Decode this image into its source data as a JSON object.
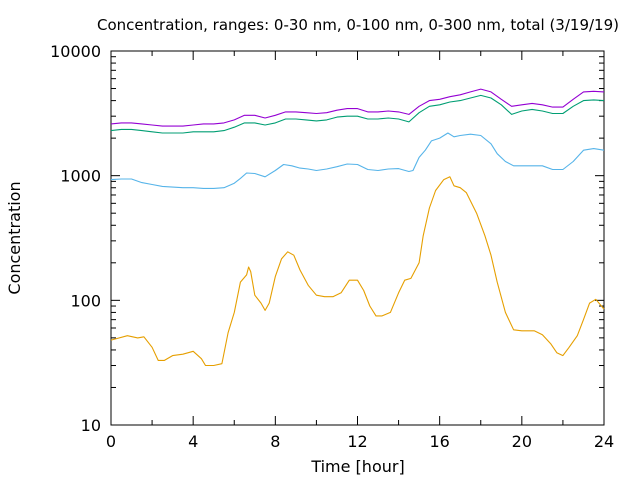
{
  "chart_data": {
    "type": "line",
    "title": "Concentration, ranges: 0-30 nm, 0-100 nm, 0-300 nm, total (3/19/19)",
    "xlabel": "Time [hour]",
    "ylabel": "Concentration",
    "xlim": [
      0,
      24
    ],
    "ylim": [
      10,
      10000
    ],
    "yscale": "log",
    "grid": false,
    "legend": "none",
    "x_ticks": [
      "0",
      "4",
      "8",
      "12",
      "16",
      "20",
      "24"
    ],
    "x_tick_values": [
      0,
      4,
      8,
      12,
      16,
      20,
      24
    ],
    "y_ticks": [
      "10",
      "100",
      "1000",
      "10000"
    ],
    "y_tick_values": [
      10,
      100,
      1000,
      10000
    ],
    "series": [
      {
        "color": "#e69f00",
        "points": [
          [
            0,
            48
          ],
          [
            0.8,
            52
          ],
          [
            1.3,
            50
          ],
          [
            1.6,
            51
          ],
          [
            2.0,
            42
          ],
          [
            2.3,
            33
          ],
          [
            2.6,
            33
          ],
          [
            3.0,
            36
          ],
          [
            3.5,
            37
          ],
          [
            4.0,
            39
          ],
          [
            4.4,
            34
          ],
          [
            4.6,
            30
          ],
          [
            5.0,
            30
          ],
          [
            5.4,
            31
          ],
          [
            5.7,
            55
          ],
          [
            6.0,
            80
          ],
          [
            6.3,
            140
          ],
          [
            6.6,
            160
          ],
          [
            6.7,
            185
          ],
          [
            6.8,
            170
          ],
          [
            7.0,
            110
          ],
          [
            7.3,
            95
          ],
          [
            7.5,
            83
          ],
          [
            7.7,
            95
          ],
          [
            8.0,
            155
          ],
          [
            8.3,
            215
          ],
          [
            8.6,
            245
          ],
          [
            8.9,
            230
          ],
          [
            9.2,
            175
          ],
          [
            9.6,
            132
          ],
          [
            10.0,
            110
          ],
          [
            10.4,
            107
          ],
          [
            10.8,
            107
          ],
          [
            11.2,
            115
          ],
          [
            11.6,
            145
          ],
          [
            12.0,
            145
          ],
          [
            12.3,
            120
          ],
          [
            12.6,
            90
          ],
          [
            12.9,
            75
          ],
          [
            13.2,
            75
          ],
          [
            13.6,
            80
          ],
          [
            14.0,
            115
          ],
          [
            14.3,
            145
          ],
          [
            14.6,
            150
          ],
          [
            15.0,
            200
          ],
          [
            15.2,
            330
          ],
          [
            15.5,
            550
          ],
          [
            15.8,
            760
          ],
          [
            16.2,
            930
          ],
          [
            16.5,
            980
          ],
          [
            16.7,
            830
          ],
          [
            17.0,
            800
          ],
          [
            17.3,
            730
          ],
          [
            17.8,
            500
          ],
          [
            18.2,
            330
          ],
          [
            18.5,
            230
          ],
          [
            18.8,
            140
          ],
          [
            19.2,
            80
          ],
          [
            19.6,
            58
          ],
          [
            20.0,
            57
          ],
          [
            20.6,
            57
          ],
          [
            21.0,
            53
          ],
          [
            21.4,
            45
          ],
          [
            21.7,
            38
          ],
          [
            22.0,
            36
          ],
          [
            22.3,
            42
          ],
          [
            22.7,
            52
          ],
          [
            23.0,
            70
          ],
          [
            23.3,
            95
          ],
          [
            23.6,
            102
          ],
          [
            24.0,
            85
          ]
        ]
      },
      {
        "color": "#56b4e9",
        "points": [
          [
            0,
            930
          ],
          [
            0.5,
            940
          ],
          [
            1.0,
            940
          ],
          [
            1.5,
            880
          ],
          [
            2.0,
            850
          ],
          [
            2.5,
            820
          ],
          [
            3.0,
            810
          ],
          [
            3.5,
            800
          ],
          [
            4.0,
            800
          ],
          [
            4.5,
            790
          ],
          [
            5.0,
            790
          ],
          [
            5.5,
            800
          ],
          [
            6.0,
            870
          ],
          [
            6.3,
            950
          ],
          [
            6.6,
            1050
          ],
          [
            7.0,
            1040
          ],
          [
            7.5,
            980
          ],
          [
            8.0,
            1100
          ],
          [
            8.4,
            1230
          ],
          [
            8.8,
            1200
          ],
          [
            9.2,
            1150
          ],
          [
            9.6,
            1130
          ],
          [
            10.0,
            1100
          ],
          [
            10.5,
            1130
          ],
          [
            11.0,
            1180
          ],
          [
            11.5,
            1240
          ],
          [
            12.0,
            1230
          ],
          [
            12.5,
            1120
          ],
          [
            13.0,
            1100
          ],
          [
            13.5,
            1130
          ],
          [
            14.0,
            1140
          ],
          [
            14.5,
            1080
          ],
          [
            14.7,
            1100
          ],
          [
            15.0,
            1400
          ],
          [
            15.3,
            1600
          ],
          [
            15.6,
            1900
          ],
          [
            16.0,
            2000
          ],
          [
            16.4,
            2200
          ],
          [
            16.7,
            2050
          ],
          [
            17.0,
            2100
          ],
          [
            17.5,
            2150
          ],
          [
            18.0,
            2100
          ],
          [
            18.5,
            1800
          ],
          [
            18.8,
            1500
          ],
          [
            19.2,
            1300
          ],
          [
            19.6,
            1200
          ],
          [
            20.0,
            1200
          ],
          [
            20.6,
            1200
          ],
          [
            21.0,
            1200
          ],
          [
            21.5,
            1120
          ],
          [
            22.0,
            1120
          ],
          [
            22.5,
            1300
          ],
          [
            23.0,
            1600
          ],
          [
            23.5,
            1650
          ],
          [
            24.0,
            1600
          ]
        ]
      },
      {
        "color": "#009e73",
        "points": [
          [
            0,
            2300
          ],
          [
            0.5,
            2350
          ],
          [
            1.0,
            2350
          ],
          [
            1.5,
            2300
          ],
          [
            2.0,
            2250
          ],
          [
            2.5,
            2200
          ],
          [
            3.0,
            2200
          ],
          [
            3.5,
            2200
          ],
          [
            4.0,
            2250
          ],
          [
            4.5,
            2250
          ],
          [
            5.0,
            2250
          ],
          [
            5.5,
            2300
          ],
          [
            6.0,
            2450
          ],
          [
            6.5,
            2650
          ],
          [
            7.0,
            2650
          ],
          [
            7.5,
            2550
          ],
          [
            8.0,
            2650
          ],
          [
            8.5,
            2850
          ],
          [
            9.0,
            2850
          ],
          [
            9.5,
            2800
          ],
          [
            10.0,
            2750
          ],
          [
            10.5,
            2800
          ],
          [
            11.0,
            2950
          ],
          [
            11.5,
            3000
          ],
          [
            12.0,
            3000
          ],
          [
            12.5,
            2850
          ],
          [
            13.0,
            2850
          ],
          [
            13.5,
            2900
          ],
          [
            14.0,
            2850
          ],
          [
            14.5,
            2700
          ],
          [
            15.0,
            3200
          ],
          [
            15.5,
            3600
          ],
          [
            16.0,
            3700
          ],
          [
            16.5,
            3900
          ],
          [
            17.0,
            4000
          ],
          [
            17.5,
            4200
          ],
          [
            18.0,
            4400
          ],
          [
            18.5,
            4200
          ],
          [
            19.0,
            3700
          ],
          [
            19.5,
            3100
          ],
          [
            20.0,
            3300
          ],
          [
            20.5,
            3400
          ],
          [
            21.0,
            3300
          ],
          [
            21.5,
            3150
          ],
          [
            22.0,
            3150
          ],
          [
            22.5,
            3600
          ],
          [
            23.0,
            4000
          ],
          [
            23.5,
            4050
          ],
          [
            24.0,
            4000
          ]
        ]
      },
      {
        "color": "#9400d3",
        "points": [
          [
            0,
            2600
          ],
          [
            0.5,
            2650
          ],
          [
            1.0,
            2650
          ],
          [
            1.5,
            2600
          ],
          [
            2.0,
            2550
          ],
          [
            2.5,
            2500
          ],
          [
            3.0,
            2500
          ],
          [
            3.5,
            2500
          ],
          [
            4.0,
            2550
          ],
          [
            4.5,
            2600
          ],
          [
            5.0,
            2600
          ],
          [
            5.5,
            2650
          ],
          [
            6.0,
            2800
          ],
          [
            6.5,
            3050
          ],
          [
            7.0,
            3050
          ],
          [
            7.5,
            2900
          ],
          [
            8.0,
            3050
          ],
          [
            8.5,
            3250
          ],
          [
            9.0,
            3250
          ],
          [
            9.5,
            3200
          ],
          [
            10.0,
            3150
          ],
          [
            10.5,
            3200
          ],
          [
            11.0,
            3350
          ],
          [
            11.5,
            3450
          ],
          [
            12.0,
            3450
          ],
          [
            12.5,
            3250
          ],
          [
            13.0,
            3250
          ],
          [
            13.5,
            3300
          ],
          [
            14.0,
            3250
          ],
          [
            14.5,
            3100
          ],
          [
            15.0,
            3600
          ],
          [
            15.5,
            4000
          ],
          [
            16.0,
            4100
          ],
          [
            16.5,
            4300
          ],
          [
            17.0,
            4450
          ],
          [
            17.5,
            4700
          ],
          [
            18.0,
            4950
          ],
          [
            18.5,
            4700
          ],
          [
            19.0,
            4100
          ],
          [
            19.5,
            3600
          ],
          [
            20.0,
            3700
          ],
          [
            20.5,
            3800
          ],
          [
            21.0,
            3700
          ],
          [
            21.5,
            3550
          ],
          [
            22.0,
            3550
          ],
          [
            22.5,
            4100
          ],
          [
            23.0,
            4700
          ],
          [
            23.5,
            4750
          ],
          [
            24.0,
            4700
          ]
        ]
      }
    ]
  }
}
